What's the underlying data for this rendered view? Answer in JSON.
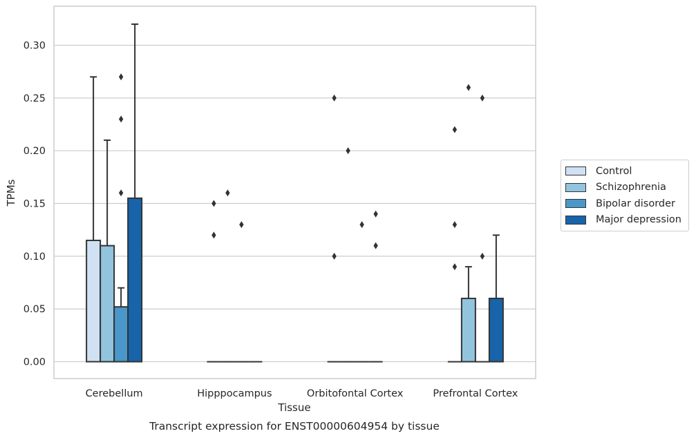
{
  "chart_data": {
    "type": "bar",
    "title": "Transcript expression for ENST00000604954 by tissue",
    "xlabel": "Tissue",
    "ylabel": "TPMs",
    "ylim": [
      -0.016,
      0.337
    ],
    "yticks": [
      0.0,
      0.05,
      0.1,
      0.15,
      0.2,
      0.25,
      0.3
    ],
    "ytick_labels": [
      "0.00",
      "0.05",
      "0.10",
      "0.15",
      "0.20",
      "0.25",
      "0.30"
    ],
    "grid": "horizontal",
    "legend_position": "right",
    "categories": [
      "Cerebellum",
      "Hipppocampus",
      "Orbitofontal Cortex",
      "Prefrontal Cortex"
    ],
    "series": [
      {
        "name": "Control",
        "color": "#cfe1f2",
        "values": [
          0.115,
          0.0,
          0.0,
          0.0
        ],
        "errors": [
          0.27,
          null,
          null,
          null
        ],
        "outliers": [
          [],
          [
            0.15,
            0.12
          ],
          [
            0.25,
            0.1
          ],
          [
            0.22,
            0.13,
            0.09
          ]
        ]
      },
      {
        "name": "Schizophrenia",
        "color": "#93c4de",
        "values": [
          0.11,
          0.0,
          0.0,
          0.06
        ],
        "errors": [
          0.21,
          null,
          null,
          0.09
        ],
        "outliers": [
          [],
          [
            0.16
          ],
          [
            0.2
          ],
          [
            0.26
          ]
        ]
      },
      {
        "name": "Bipolar disorder",
        "color": "#4a98c9",
        "values": [
          0.052,
          0.0,
          0.0,
          0.0
        ],
        "errors": [
          0.07,
          null,
          null,
          null
        ],
        "outliers": [
          [
            0.27,
            0.23,
            0.16
          ],
          [
            0.13
          ],
          [
            0.13
          ],
          [
            0.25,
            0.1
          ]
        ]
      },
      {
        "name": "Major depression",
        "color": "#1764ab",
        "values": [
          0.155,
          0.0,
          0.0,
          0.06
        ],
        "errors": [
          0.32,
          null,
          null,
          0.12
        ],
        "outliers": [
          [],
          [],
          [
            0.14,
            0.11
          ],
          []
        ]
      }
    ]
  }
}
